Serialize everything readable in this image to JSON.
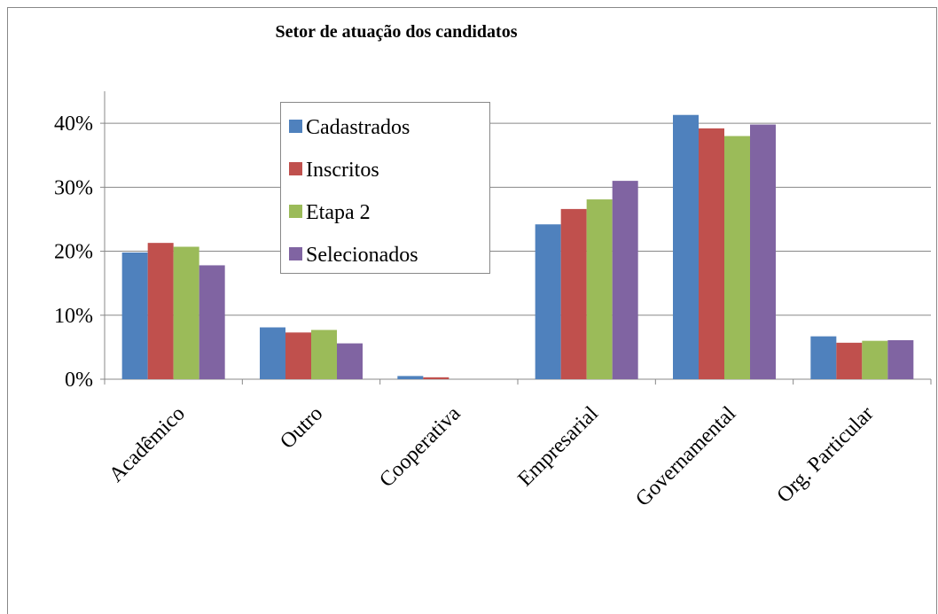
{
  "chart_data": {
    "type": "bar",
    "title": "Setor de atuação dos candidatos",
    "categories": [
      "Acadêmico",
      "Outro",
      "Cooperativa",
      "Empresarial",
      "Governamental",
      "Org. Particular"
    ],
    "series": [
      {
        "name": "Cadastrados",
        "color": "#4f81bd",
        "values": [
          19.8,
          8.1,
          0.5,
          24.2,
          41.3,
          6.7
        ]
      },
      {
        "name": "Inscritos",
        "color": "#c0504d",
        "values": [
          21.3,
          7.3,
          0.3,
          26.6,
          39.2,
          5.7
        ]
      },
      {
        "name": "Etapa 2",
        "color": "#9bbb59",
        "values": [
          20.7,
          7.7,
          0,
          28.1,
          38.0,
          6.0
        ]
      },
      {
        "name": "Selecionados",
        "color": "#8064a2",
        "values": [
          17.8,
          5.6,
          0,
          31.0,
          39.8,
          6.1
        ]
      }
    ],
    "ylim": [
      0,
      45
    ],
    "yticks": [
      {
        "value": 0,
        "label": "0%"
      },
      {
        "value": 10,
        "label": "10%"
      },
      {
        "value": 20,
        "label": "20%"
      },
      {
        "value": 30,
        "label": "30%"
      },
      {
        "value": 40,
        "label": "40%"
      }
    ],
    "grid": true,
    "legend": "top-center"
  }
}
